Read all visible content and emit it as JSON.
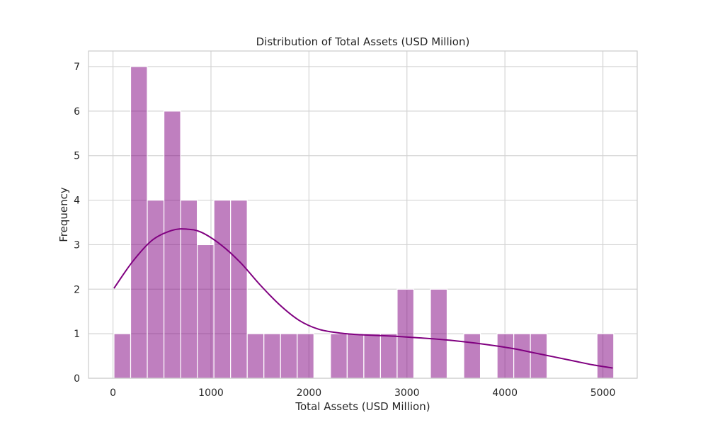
{
  "chart_data": {
    "type": "bar",
    "title": "Distribution of Total Assets (USD Million)",
    "xlabel": "Total Assets (USD Million)",
    "ylabel": "Frequency",
    "xlim": [
      -250,
      5350
    ],
    "ylim": [
      0,
      7.35
    ],
    "x_ticks": [
      0,
      1000,
      2000,
      3000,
      4000,
      5000
    ],
    "y_ticks": [
      0,
      1,
      2,
      3,
      4,
      5,
      6,
      7
    ],
    "grid": true,
    "bar_color": "#800080",
    "kde_color": "#800080",
    "bins": {
      "start": 10,
      "width": 170,
      "counts": [
        1,
        7,
        4,
        6,
        4,
        3,
        4,
        4,
        1,
        1,
        1,
        1,
        0,
        1,
        1,
        1,
        1,
        2,
        0,
        2,
        0,
        1,
        0,
        1,
        1,
        1,
        0,
        0,
        0,
        1
      ]
    },
    "kde": {
      "x": [
        10,
        200,
        400,
        600,
        750,
        900,
        1100,
        1300,
        1500,
        1700,
        1900,
        2100,
        2300,
        2500,
        2700,
        2900,
        3100,
        3300,
        3500,
        3700,
        3900,
        4100,
        4300,
        4500,
        4700,
        4900,
        5100
      ],
      "y": [
        2.02,
        2.62,
        3.1,
        3.32,
        3.35,
        3.28,
        3.0,
        2.6,
        2.1,
        1.65,
        1.3,
        1.1,
        1.02,
        0.98,
        0.96,
        0.94,
        0.91,
        0.88,
        0.84,
        0.79,
        0.73,
        0.66,
        0.57,
        0.48,
        0.39,
        0.3,
        0.23
      ]
    }
  }
}
